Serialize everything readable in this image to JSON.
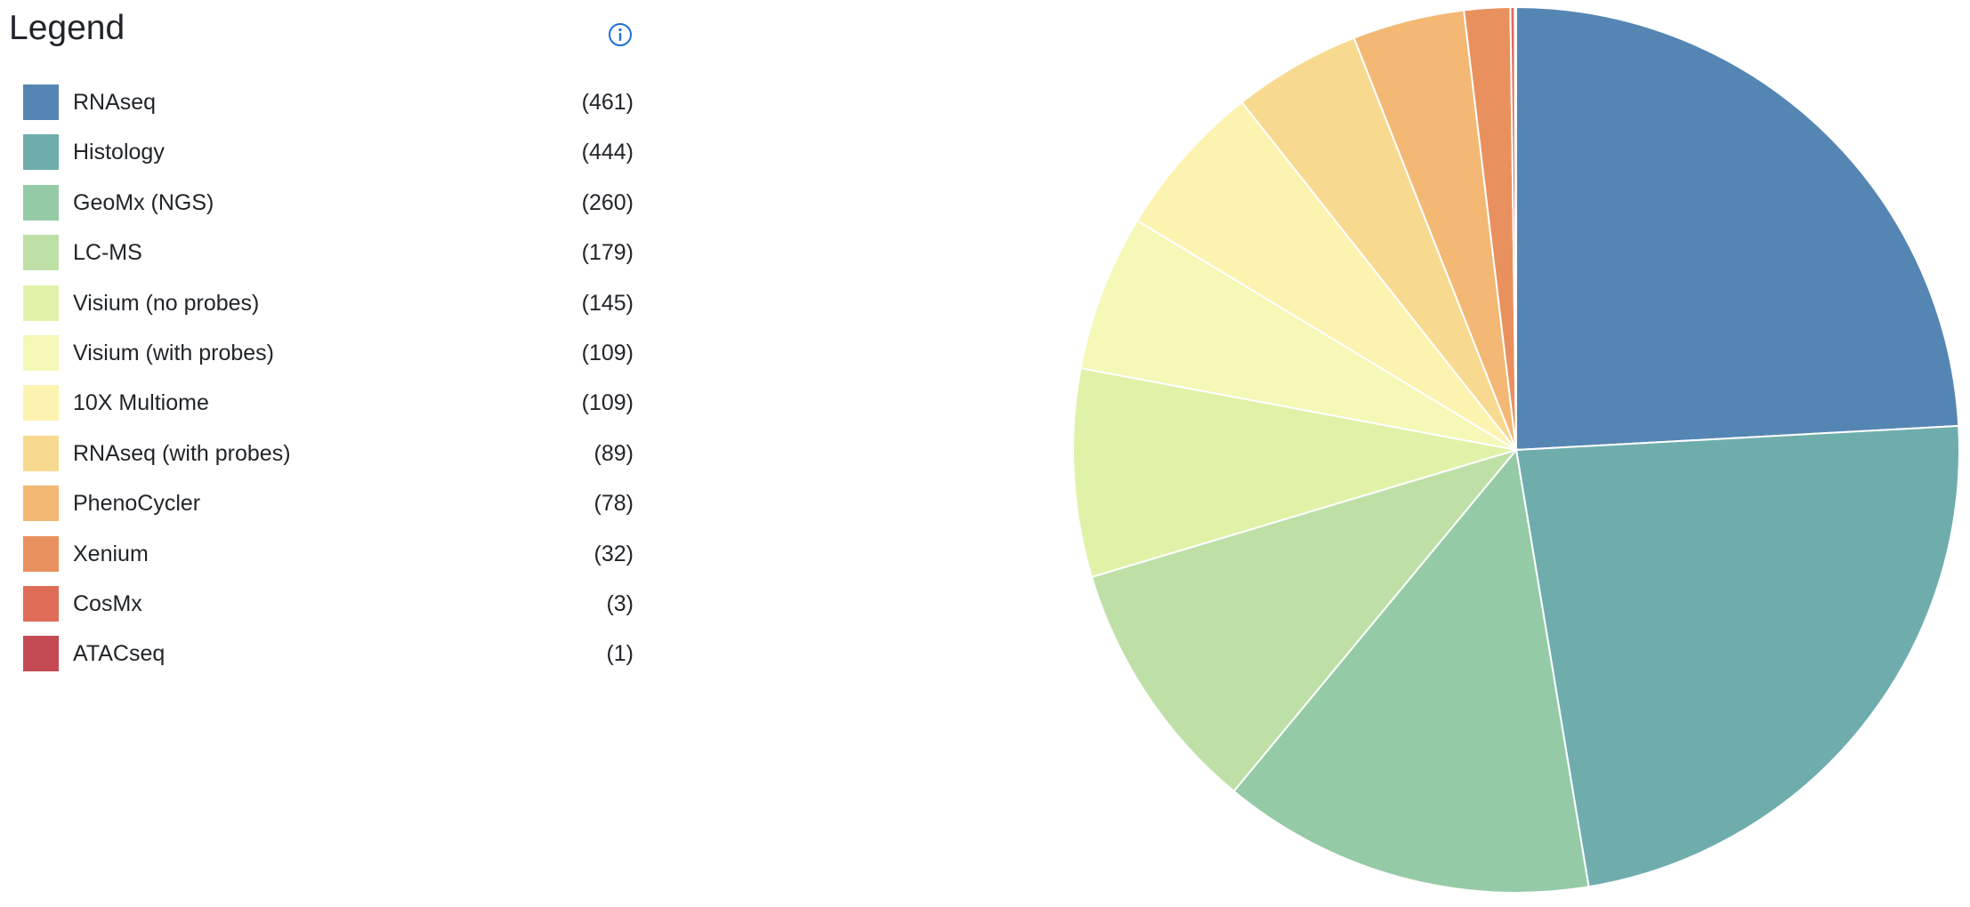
{
  "legend": {
    "title": "Legend",
    "info_icon": "info-circle-icon",
    "accent_color": "#1f6fd6"
  },
  "chart_data": {
    "type": "pie",
    "title": "",
    "legend_position": "left",
    "categories": [
      "RNAseq",
      "Histology",
      "GeoMx (NGS)",
      "LC-MS",
      "Visium (no probes)",
      "Visium (with probes)",
      "10X Multiome",
      "RNAseq (with probes)",
      "PhenoCycler",
      "Xenium",
      "CosMx",
      "ATACseq"
    ],
    "values": [
      461,
      444,
      260,
      179,
      145,
      109,
      109,
      89,
      78,
      32,
      3,
      1
    ],
    "count_labels": [
      "(461)",
      "(444)",
      "(260)",
      "(179)",
      "(145)",
      "(109)",
      "(109)",
      "(89)",
      "(78)",
      "(32)",
      "(3)",
      "(1)"
    ],
    "colors": [
      "#5586b3",
      "#6fadad",
      "#95caa6",
      "#bee0a7",
      "#e0f2a8",
      "#f5f8b6",
      "#fcf3b1",
      "#f8d990",
      "#f2b874",
      "#e9915e",
      "#de6c57",
      "#c44a54"
    ]
  }
}
